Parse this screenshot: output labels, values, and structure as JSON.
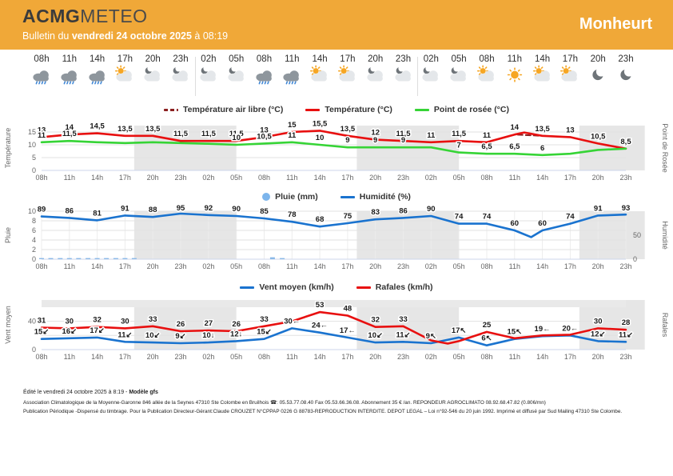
{
  "header": {
    "brand_bold": "ACMG",
    "brand_light": "METEO",
    "bulletin_prefix": "Bulletin du ",
    "bulletin_date": "vendredi 24 octobre 2025",
    "bulletin_suffix": " à 08:19",
    "location": "Monheurt",
    "bg_color": "#F0A838"
  },
  "timeline": {
    "slots": [
      {
        "time": "08h",
        "icon": "rain"
      },
      {
        "time": "11h",
        "icon": "rain"
      },
      {
        "time": "14h",
        "icon": "rain"
      },
      {
        "time": "17h",
        "icon": "sun-cloud"
      },
      {
        "time": "20h",
        "icon": "moon-cloud"
      },
      {
        "time": "23h",
        "icon": "moon-cloud"
      },
      {
        "time": "02h",
        "icon": "moon-cloud"
      },
      {
        "time": "05h",
        "icon": "moon-cloud"
      },
      {
        "time": "08h",
        "icon": "rain"
      },
      {
        "time": "11h",
        "icon": "rain"
      },
      {
        "time": "14h",
        "icon": "sun-cloud"
      },
      {
        "time": "17h",
        "icon": "sun-cloud"
      },
      {
        "time": "20h",
        "icon": "moon-cloud"
      },
      {
        "time": "23h",
        "icon": "moon-cloud"
      },
      {
        "time": "02h",
        "icon": "moon-cloud"
      },
      {
        "time": "05h",
        "icon": "moon-cloud"
      },
      {
        "time": "08h",
        "icon": "sun-cloud"
      },
      {
        "time": "11h",
        "icon": "sun"
      },
      {
        "time": "14h",
        "icon": "sun-cloud"
      },
      {
        "time": "17h",
        "icon": "sun-cloud"
      },
      {
        "time": "20h",
        "icon": "moon"
      },
      {
        "time": "23h",
        "icon": "moon"
      }
    ],
    "day_separators_after_slot": [
      5,
      13
    ]
  },
  "categories": [
    "08h",
    "11h",
    "14h",
    "17h",
    "20h",
    "23h",
    "02h",
    "05h",
    "08h",
    "11h",
    "14h",
    "17h",
    "20h",
    "23h",
    "02h",
    "05h",
    "08h",
    "11h",
    "14h",
    "17h",
    "20h",
    "23h"
  ],
  "night_bands": [
    [
      3.33,
      7
    ],
    [
      11.33,
      15
    ],
    [
      19.33,
      21.68
    ]
  ],
  "chart_data": [
    {
      "id": "temperature",
      "type": "line",
      "legend": [
        {
          "label": "Température air libre (°C)",
          "color": "#8b2020",
          "dash": true
        },
        {
          "label": "Température (°C)",
          "color": "#e81010"
        },
        {
          "label": "Point de rosée (°C)",
          "color": "#36d436"
        }
      ],
      "ylabel_left": "Température",
      "ylabel_right": "Point de Rosée",
      "ymax": 17.5,
      "yticks_left": [
        {
          "label": "15",
          "v": 15
        },
        {
          "label": "10",
          "v": 10
        },
        {
          "label": "5",
          "v": 5
        },
        {
          "label": "0",
          "v": 0
        }
      ],
      "yticks_right": [],
      "grid": [
        5,
        10,
        15
      ],
      "vgrid": false,
      "series": [
        {
          "name": "Température air libre (°C)",
          "color": "#8b2020",
          "dash": true,
          "values": [
            13,
            14,
            14.5,
            13.5,
            13.5,
            11.5,
            11.5,
            11.5,
            13,
            15,
            15.5,
            13.5,
            12,
            11.5,
            11,
            11.5,
            11,
            14,
            13.5,
            13,
            10.5,
            8.5
          ]
        },
        {
          "name": "Température (°C)",
          "color": "#e81010",
          "width": 2.6,
          "values": [
            13,
            14,
            14.5,
            13.5,
            13.5,
            11.5,
            11.5,
            11.5,
            13,
            15,
            15.5,
            13.5,
            12,
            11.5,
            11,
            11.5,
            11,
            14,
            13.5,
            13,
            10.5,
            8.5
          ],
          "labels": [
            "13",
            "14",
            "14,5",
            "13,5",
            "13,5",
            "11,5",
            "11,5",
            "11,5",
            "13",
            "15",
            "15,5",
            "13,5",
            "12",
            "11,5",
            "11",
            "11,5",
            "11",
            "14",
            "13,5",
            "13",
            "10,5",
            "8,5"
          ],
          "extra_points": [
            [
              17.35,
              14.8
            ]
          ]
        },
        {
          "name": "Point de rosée (°C)",
          "color": "#36d436",
          "width": 2.6,
          "values": [
            11,
            11.5,
            11,
            10.7,
            11,
            10.7,
            10.4,
            10,
            10.5,
            11,
            10,
            9,
            9,
            9,
            9,
            7,
            6.5,
            6.5,
            6,
            6.5,
            8,
            8.5
          ],
          "labels": [
            "11",
            "11,5",
            null,
            null,
            null,
            null,
            null,
            "10",
            "10,5",
            "11",
            "10",
            "9",
            "9",
            "9",
            null,
            "7",
            "6,5",
            "6,5",
            "6",
            null,
            null,
            "8,5"
          ]
        }
      ]
    },
    {
      "id": "rain-humidity",
      "type": "line",
      "legend": [
        {
          "label": "Pluie (mm)",
          "color": "#7cb5ec",
          "marker": "circle"
        },
        {
          "label": "Humidité (%)",
          "color": "#1a73cf"
        }
      ],
      "ylabel_left": "Pluie",
      "ylabel_right": "Humidité",
      "ymax": 100,
      "yticks_left": [
        {
          "label": "10",
          "v": 100
        },
        {
          "label": "8",
          "v": 80
        },
        {
          "label": "6",
          "v": 60
        },
        {
          "label": "4",
          "v": 40
        },
        {
          "label": "2",
          "v": 20
        },
        {
          "label": "0",
          "v": 0
        }
      ],
      "yticks_right": [
        {
          "label": "50",
          "v": 50
        },
        {
          "label": "0",
          "v": 0
        }
      ],
      "grid": [
        20,
        40,
        60,
        80,
        100
      ],
      "vgrid": true,
      "series": [
        {
          "name": "Humidité (%)",
          "color": "#1a73cf",
          "width": 2.6,
          "values": [
            89,
            86,
            81,
            91,
            88,
            95,
            92,
            90,
            85,
            78,
            68,
            75,
            83,
            86,
            90,
            74,
            74,
            60,
            60,
            74,
            91,
            93
          ],
          "labels": [
            "89",
            "86",
            "81",
            "91",
            "88",
            "95",
            "92",
            "90",
            "85",
            "78",
            "68",
            "75",
            "83",
            "86",
            "90",
            "74",
            "74",
            "60",
            "60",
            "74",
            "91",
            "93"
          ],
          "extra_points": [
            [
              17.6,
              46
            ]
          ]
        }
      ],
      "bars": {
        "name": "Pluie (mm)",
        "color": "#8ab9e8",
        "ymax_mm": 10,
        "points": [
          [
            0,
            0.15
          ],
          [
            0.33,
            0.1
          ],
          [
            0.67,
            0.12
          ],
          [
            1,
            0.18
          ],
          [
            1.33,
            0.12
          ],
          [
            1.67,
            0.1
          ],
          [
            2,
            0.15
          ],
          [
            2.33,
            0.12
          ],
          [
            2.67,
            0.1
          ],
          [
            3,
            0.12
          ],
          [
            3.33,
            0.08
          ],
          [
            8.3,
            0.4
          ],
          [
            8.65,
            0.15
          ]
        ]
      }
    },
    {
      "id": "wind",
      "type": "line",
      "legend": [
        {
          "label": "Vent moyen (km/h)",
          "color": "#1a73cf"
        },
        {
          "label": "Rafales (km/h)",
          "color": "#e81010"
        }
      ],
      "ylabel_left": "Vent moyen",
      "ylabel_right": "Rafales",
      "ymax": 70,
      "yticks_left": [
        {
          "label": "40",
          "v": 40
        },
        {
          "label": "0",
          "v": 0
        }
      ],
      "yticks_right": [],
      "grid": [
        20,
        40
      ],
      "vgrid": false,
      "top_band": true,
      "series": [
        {
          "name": "Vent moyen (km/h)",
          "color": "#1a73cf",
          "width": 2.6,
          "values": [
            15,
            16,
            17,
            11,
            10,
            9,
            10,
            12,
            15,
            30,
            24,
            17,
            10,
            11,
            9,
            17,
            6,
            15,
            19,
            20,
            12,
            11
          ],
          "labels": [
            "15↙",
            "16↙",
            "17↙",
            "11↙",
            "10↙",
            "9↙",
            "10↓",
            "12↓",
            "15↙",
            "30←",
            "24←",
            "17←",
            "10↙",
            "11↙",
            "9↖",
            "17↖",
            "6↖",
            "15↖",
            "19←",
            "20←",
            "12↙",
            "11↙"
          ]
        },
        {
          "name": "Rafales (km/h)",
          "color": "#e81010",
          "width": 2.6,
          "values": [
            31,
            30,
            32,
            30,
            33,
            26,
            27,
            26,
            33,
            40,
            53,
            48,
            32,
            33,
            13,
            12,
            25,
            16,
            20,
            21,
            30,
            28
          ],
          "labels": [
            "31",
            "30",
            "32",
            "30",
            "33",
            "26",
            "27",
            "26",
            "33",
            null,
            "53",
            "48",
            "32",
            "33",
            null,
            null,
            "25",
            null,
            null,
            null,
            "30",
            "28"
          ],
          "extra_points": [
            [
              14.6,
              8.5
            ]
          ]
        }
      ]
    }
  ],
  "footer": {
    "line1_prefix": "Édité le vendredi 24 octobre 2025 à 8:19 - ",
    "line1_bold": "Modèle gfs",
    "line2": "Association Climatologique de la Moyenne-Garonne 846 allée de la Seynes 47310 Ste Colombe en Bruilhois ☎: 05.53.77.08.40 Fax 05.53.66.36.08. Abonnement 35 € /an. REPONDEUR AGROCLIMATO 08.92.68.47.82 (0.806/mn)",
    "line3": "Publication Périodique -Dispensé du timbrage. Pour la Publication Directeur-Gérant:Claude CROUZET N°CPPAP 0226 G 88783-REPRODUCTION INTERDITE. DEPOT LEGAL – Loi n°92-546 du 20 juin 1992. Imprimé et diffusé par Sud Mailing 47310 Ste Colombe."
  }
}
